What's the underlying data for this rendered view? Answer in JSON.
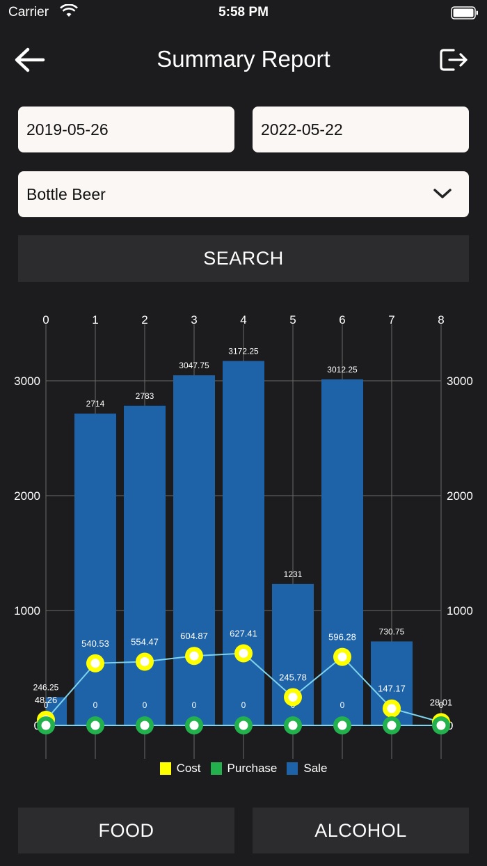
{
  "status": {
    "carrier": "Carrier",
    "time": "5:58 PM"
  },
  "nav": {
    "title": "Summary Report"
  },
  "filters": {
    "from_date": "2019-05-26",
    "to_date": "2022-05-22",
    "category": "Bottle Beer"
  },
  "search_label": "SEARCH",
  "bottom_buttons": {
    "food": "FOOD",
    "alcohol": "ALCOHOL"
  },
  "colors": {
    "sale": "#1e63a8",
    "cost": "#ffff00",
    "purchase": "#22b14c",
    "line": "#7fd3ec",
    "grid": "#6a6a6a"
  },
  "chart_data": {
    "type": "bar",
    "x": [
      0,
      1,
      2,
      3,
      4,
      5,
      6,
      7,
      8
    ],
    "xlim": [
      0,
      8
    ],
    "ylim": [
      0,
      3000
    ],
    "yticks": [
      0,
      1000,
      2000,
      3000
    ],
    "legend_position": "bottom",
    "series": [
      {
        "name": "Sale",
        "kind": "bar",
        "values": [
          246.25,
          2714,
          2783,
          3047.75,
          3172.25,
          1231,
          3012.25,
          730.75,
          null
        ],
        "labels": [
          "246.25",
          "2714",
          "2783",
          "3047.75",
          "3172.25",
          "1231",
          "3012.25",
          "730.75",
          ""
        ]
      },
      {
        "name": "Cost",
        "kind": "line",
        "values": [
          48.26,
          540.53,
          554.47,
          604.87,
          627.41,
          245.78,
          596.28,
          147.17,
          28.01
        ],
        "labels": [
          "48.26",
          "540.53",
          "554.47",
          "604.87",
          "627.41",
          "245.78",
          "596.28",
          "147.17",
          "28.01"
        ]
      },
      {
        "name": "Purchase",
        "kind": "line",
        "values": [
          0,
          0,
          0,
          0,
          0,
          0,
          0,
          0,
          0
        ],
        "labels": [
          "0",
          "0",
          "0",
          "0",
          "0",
          "0",
          "0",
          "0",
          "0"
        ]
      }
    ]
  }
}
